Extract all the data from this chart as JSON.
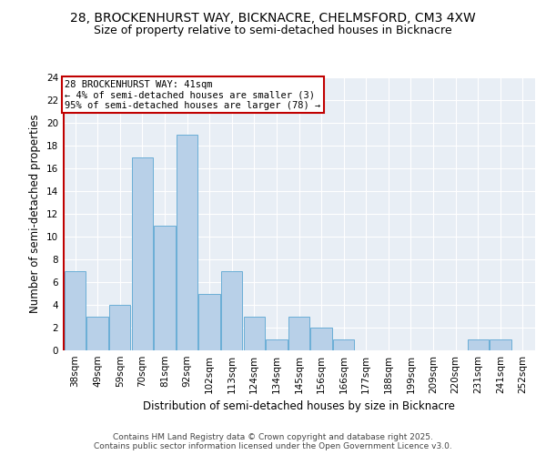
{
  "title": "28, BROCKENHURST WAY, BICKNACRE, CHELMSFORD, CM3 4XW",
  "subtitle": "Size of property relative to semi-detached houses in Bicknacre",
  "xlabel": "Distribution of semi-detached houses by size in Bicknacre",
  "ylabel": "Number of semi-detached properties",
  "bin_labels": [
    "38sqm",
    "49sqm",
    "59sqm",
    "70sqm",
    "81sqm",
    "92sqm",
    "102sqm",
    "113sqm",
    "124sqm",
    "134sqm",
    "145sqm",
    "156sqm",
    "166sqm",
    "177sqm",
    "188sqm",
    "199sqm",
    "209sqm",
    "220sqm",
    "231sqm",
    "241sqm",
    "252sqm"
  ],
  "bar_values": [
    7,
    3,
    4,
    17,
    11,
    19,
    5,
    7,
    3,
    1,
    3,
    2,
    1,
    0,
    0,
    0,
    0,
    0,
    1,
    1,
    0
  ],
  "bar_color": "#b8d0e8",
  "bar_edge_color": "#6aaed6",
  "highlight_color": "#c00000",
  "annotation_text": "28 BROCKENHURST WAY: 41sqm\n← 4% of semi-detached houses are smaller (3)\n95% of semi-detached houses are larger (78) →",
  "annotation_box_color": "#ffffff",
  "annotation_box_edge_color": "#c00000",
  "ylim": [
    0,
    24
  ],
  "yticks": [
    0,
    2,
    4,
    6,
    8,
    10,
    12,
    14,
    16,
    18,
    20,
    22,
    24
  ],
  "background_color": "#e8eef5",
  "plot_bg_color": "#dce6f0",
  "footer": "Contains HM Land Registry data © Crown copyright and database right 2025.\nContains public sector information licensed under the Open Government Licence v3.0.",
  "title_fontsize": 10,
  "subtitle_fontsize": 9,
  "axis_label_fontsize": 8.5,
  "tick_fontsize": 7.5,
  "annotation_fontsize": 7.5,
  "footer_fontsize": 6.5
}
